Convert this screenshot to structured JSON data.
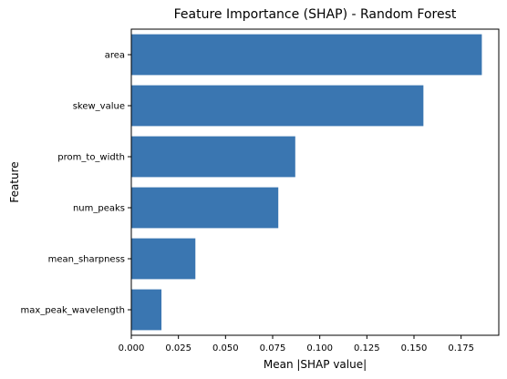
{
  "chart_data": {
    "type": "bar",
    "orientation": "horizontal",
    "title": "Feature Importance (SHAP) - Random Forest",
    "xlabel": "Mean |SHAP value|",
    "ylabel": "Feature",
    "categories": [
      "area",
      "skew_value",
      "prom_to_width",
      "num_peaks",
      "mean_sharpness",
      "max_peak_wavelength"
    ],
    "values": [
      0.186,
      0.155,
      0.087,
      0.078,
      0.034,
      0.016
    ],
    "xlim": [
      0,
      0.195
    ],
    "xticks": [
      "0.000",
      "0.025",
      "0.050",
      "0.075",
      "0.100",
      "0.125",
      "0.150",
      "0.175"
    ],
    "grid": false,
    "colors": {
      "bar": "#3a76b1",
      "axis": "#000000",
      "background": "#ffffff"
    }
  }
}
